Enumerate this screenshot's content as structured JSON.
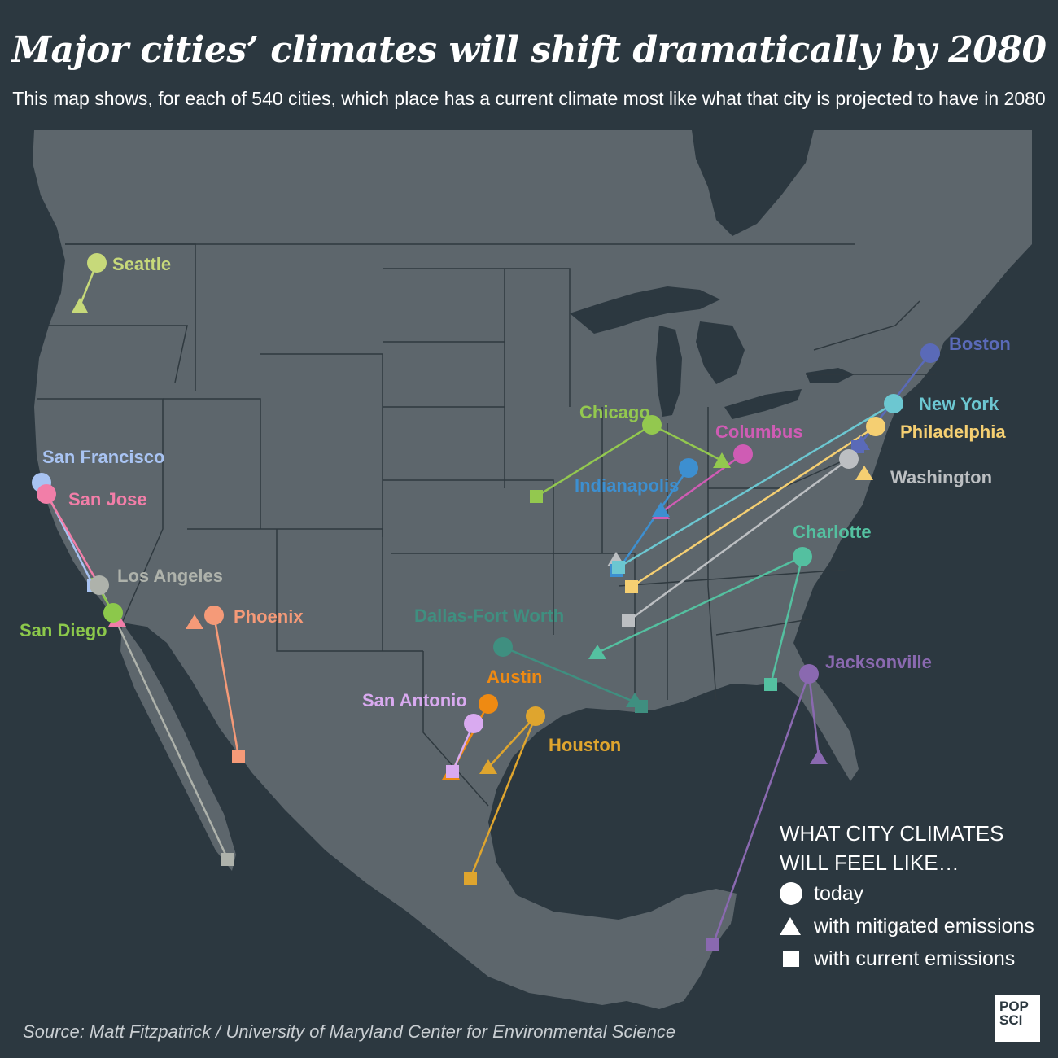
{
  "title": "Major cities’ climates  will shift dramatically by 2080",
  "subtitle": "This map shows, for each of 540 cities, which place has a current climate most like what that city is projected to have in 2080",
  "source": "Source: Matt Fitzpatrick / University of Maryland Center for Environmental Science",
  "logo": {
    "line1": "POP",
    "line2": "SCI"
  },
  "legend": {
    "title_line1": "WHAT CITY CLIMATES",
    "title_line2": "WILL FEEL LIKE…",
    "items": [
      {
        "symbol": "circle",
        "label": "today"
      },
      {
        "symbol": "triangle",
        "label": "with mitigated emissions"
      },
      {
        "symbol": "square",
        "label": "with current emissions"
      }
    ]
  },
  "colors": {
    "background": "#2c3840",
    "land": "#5d666c",
    "border": "#2f393f"
  },
  "cities": [
    {
      "name": "Seattle",
      "color": "#c7d97a"
    },
    {
      "name": "San Francisco",
      "color": "#a8c3f2"
    },
    {
      "name": "San Jose",
      "color": "#f27ea8"
    },
    {
      "name": "Los Angeles",
      "color": "#aeb2ab"
    },
    {
      "name": "San Diego",
      "color": "#8cc84b"
    },
    {
      "name": "Phoenix",
      "color": "#f59a78"
    },
    {
      "name": "Chicago",
      "color": "#93c84f"
    },
    {
      "name": "Columbus",
      "color": "#cf5cb4"
    },
    {
      "name": "Indianapolis",
      "color": "#3d8fd0"
    },
    {
      "name": "Boston",
      "color": "#5a6ab8"
    },
    {
      "name": "New York",
      "color": "#6cc7d1"
    },
    {
      "name": "Philadelphia",
      "color": "#f5cf72"
    },
    {
      "name": "Washington",
      "color": "#bcbfc2"
    },
    {
      "name": "Charlotte",
      "color": "#54c0a0"
    },
    {
      "name": "Dallas-Fort Worth",
      "color": "#3f8f80"
    },
    {
      "name": "Austin",
      "color": "#ef8a12"
    },
    {
      "name": "San Antonio",
      "color": "#d9aaf0"
    },
    {
      "name": "Houston",
      "color": "#dfa52e"
    },
    {
      "name": "Jacksonville",
      "color": "#8a69b0"
    }
  ]
}
